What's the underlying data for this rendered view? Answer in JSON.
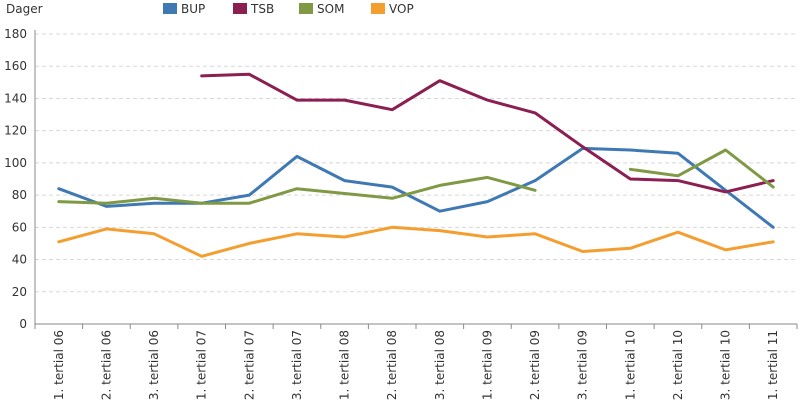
{
  "chart_data": {
    "type": "line",
    "ylabel": "Dager",
    "ylim": [
      0,
      180
    ],
    "yticks": [
      0,
      20,
      40,
      60,
      80,
      100,
      120,
      140,
      160,
      180
    ],
    "grid": true,
    "legend_position": "top",
    "categories": [
      "1. tertial 06",
      "2. tertial 06",
      "3. tertial 06",
      "1. tertial 07",
      "2. tertial 07",
      "3. tertial 07",
      "1. tertial 08",
      "2. tertial 08",
      "3. tertial 08",
      "1. tertial 09",
      "2. tertial 09",
      "3. tertial 09",
      "1. tertial 10",
      "2. tertial 10",
      "3. tertial 10",
      "1. tertial 11"
    ],
    "series": [
      {
        "name": "BUP",
        "color": "#3f79b4",
        "values": [
          84,
          73,
          75,
          75,
          80,
          104,
          89,
          85,
          70,
          76,
          89,
          109,
          108,
          106,
          83,
          60
        ]
      },
      {
        "name": "TSB",
        "color": "#8c1f52",
        "values": [
          null,
          null,
          null,
          154,
          155,
          139,
          139,
          133,
          151,
          139,
          131,
          110,
          90,
          89,
          82,
          89
        ]
      },
      {
        "name": "SOM",
        "color": "#7f9944",
        "values": [
          76,
          75,
          78,
          75,
          75,
          84,
          81,
          78,
          86,
          91,
          83,
          null,
          96,
          92,
          108,
          85
        ]
      },
      {
        "name": "VOP",
        "color": "#f49e2f",
        "values": [
          51,
          59,
          56,
          42,
          50,
          56,
          54,
          60,
          58,
          54,
          56,
          45,
          47,
          57,
          46,
          51
        ]
      }
    ]
  }
}
